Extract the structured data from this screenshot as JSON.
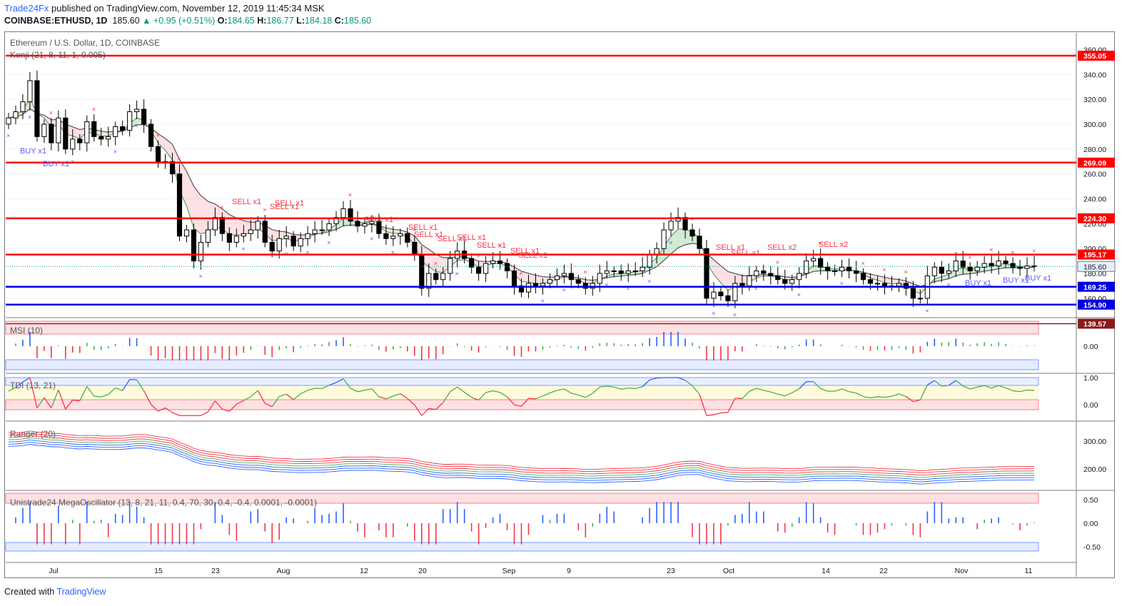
{
  "header": {
    "brand": "Trade24Fx",
    "published": "published on TradingView.com, November 12, 2019 11:45:34 MSK",
    "symbol": "COINBASE:ETHUSD, 1D",
    "last": "185.60",
    "change": "▲ +0.95 (+0.51%)",
    "open_label": "O:",
    "open": "184.65",
    "high_label": "H:",
    "high": "186.77",
    "low_label": "L:",
    "low": "184.18",
    "close_label": "C:",
    "close": "185.60"
  },
  "footer": {
    "created_with": "Created with",
    "brand": "TradingView"
  },
  "colors": {
    "up": "#089981",
    "down": "#f23645",
    "accent": "#2962ff",
    "level_red": "#ff0000",
    "level_blue": "#0000dd"
  },
  "chart_data": {
    "type": "candlestick",
    "title": "Ethereum / U.S. Dollar, 1D, COINBASE",
    "overlay_label": "Kenji (21, 8, 11, 1, 0.005)",
    "ylim": [
      145,
      370
    ],
    "y_ticks": [
      "360.00",
      "340.00",
      "320.00",
      "300.00",
      "280.00",
      "260.00",
      "240.00",
      "220.00",
      "200.00",
      "180.00",
      "160.00"
    ],
    "x_ticks": [
      "Jul",
      "15",
      "23",
      "Aug",
      "12",
      "20",
      "Sep",
      "9",
      "23",
      "Oct",
      "14",
      "22",
      "Nov",
      "11"
    ],
    "last_price": "185.60",
    "levels": [
      {
        "value": 355.05,
        "label": "355.05",
        "color": "red"
      },
      {
        "value": 269.09,
        "label": "269.09",
        "color": "red"
      },
      {
        "value": 224.3,
        "label": "224.30",
        "color": "red"
      },
      {
        "value": 195.17,
        "label": "195.17",
        "color": "red"
      },
      {
        "value": 169.25,
        "label": "169.25",
        "color": "blue"
      },
      {
        "value": 154.9,
        "label": "154.90",
        "color": "blue"
      },
      {
        "value": 139.57,
        "label": "139.57",
        "color": "dark"
      }
    ],
    "closes": [
      305,
      310,
      318,
      335,
      290,
      300,
      285,
      305,
      280,
      288,
      285,
      302,
      290,
      288,
      290,
      298,
      295,
      310,
      312,
      300,
      282,
      270,
      270,
      260,
      210,
      215,
      190,
      205,
      215,
      225,
      212,
      205,
      210,
      212,
      215,
      222,
      205,
      198,
      208,
      210,
      202,
      208,
      212,
      215,
      215,
      220,
      225,
      232,
      222,
      218,
      220,
      222,
      212,
      208,
      210,
      212,
      205,
      195,
      168,
      180,
      175,
      180,
      192,
      198,
      192,
      185,
      180,
      188,
      190,
      188,
      182,
      170,
      165,
      172,
      170,
      172,
      175,
      178,
      180,
      175,
      172,
      168,
      172,
      180,
      182,
      182,
      180,
      182,
      182,
      185,
      195,
      200,
      215,
      222,
      225,
      215,
      210,
      200,
      160,
      165,
      162,
      158,
      172,
      170,
      178,
      182,
      180,
      178,
      175,
      172,
      175,
      180,
      190,
      192,
      185,
      182,
      182,
      185,
      182,
      180,
      175,
      172,
      172,
      170,
      170,
      172,
      168,
      160,
      160,
      178,
      185,
      180,
      182,
      190,
      185,
      182,
      185,
      188,
      186,
      190,
      188,
      185,
      184,
      186,
      185.6
    ],
    "signals": [
      {
        "label": "BUY x1",
        "type": "buy"
      },
      {
        "label": "BUY x1",
        "type": "buy"
      },
      {
        "label": "SELL x1",
        "type": "sell"
      },
      {
        "label": "SELL x1",
        "type": "sell"
      },
      {
        "label": "SELL x1",
        "type": "sell"
      },
      {
        "label": "SELL x1",
        "type": "sell"
      },
      {
        "label": "SELL x1",
        "type": "sell"
      },
      {
        "label": "SELL x1",
        "type": "sell"
      },
      {
        "label": "SELL x1",
        "type": "sell"
      },
      {
        "label": "SELL x1",
        "type": "sell"
      },
      {
        "label": "SELL x1",
        "type": "sell"
      },
      {
        "label": "SELL x1",
        "type": "sell"
      },
      {
        "label": "SELL x1",
        "type": "sell"
      },
      {
        "label": "SELL x1",
        "type": "sell"
      },
      {
        "label": "SELL x1",
        "type": "sell"
      },
      {
        "label": "SELL x2",
        "type": "sell"
      },
      {
        "label": "SELL x2",
        "type": "sell"
      },
      {
        "label": "BUY x1",
        "type": "buy"
      },
      {
        "label": "BUY x1",
        "type": "buy"
      },
      {
        "label": "BUY x1",
        "type": "buy"
      }
    ],
    "panes": [
      {
        "name": "MSI (10)",
        "ticks": [
          "0.00"
        ]
      },
      {
        "name": "TDI (13, 21)",
        "ticks": [
          "1.00",
          "0.00"
        ]
      },
      {
        "name": "Ranger (20)",
        "ticks": [
          "300.00",
          "200.00"
        ]
      },
      {
        "name": "Unistrade24 MegaOscillator (13, 8, 21, 11, 0.4, 70, 30, 0.4, -0.4, 0.0001, -0.0001)",
        "ticks": [
          "0.50",
          "0.00",
          "-0.50"
        ]
      }
    ]
  }
}
